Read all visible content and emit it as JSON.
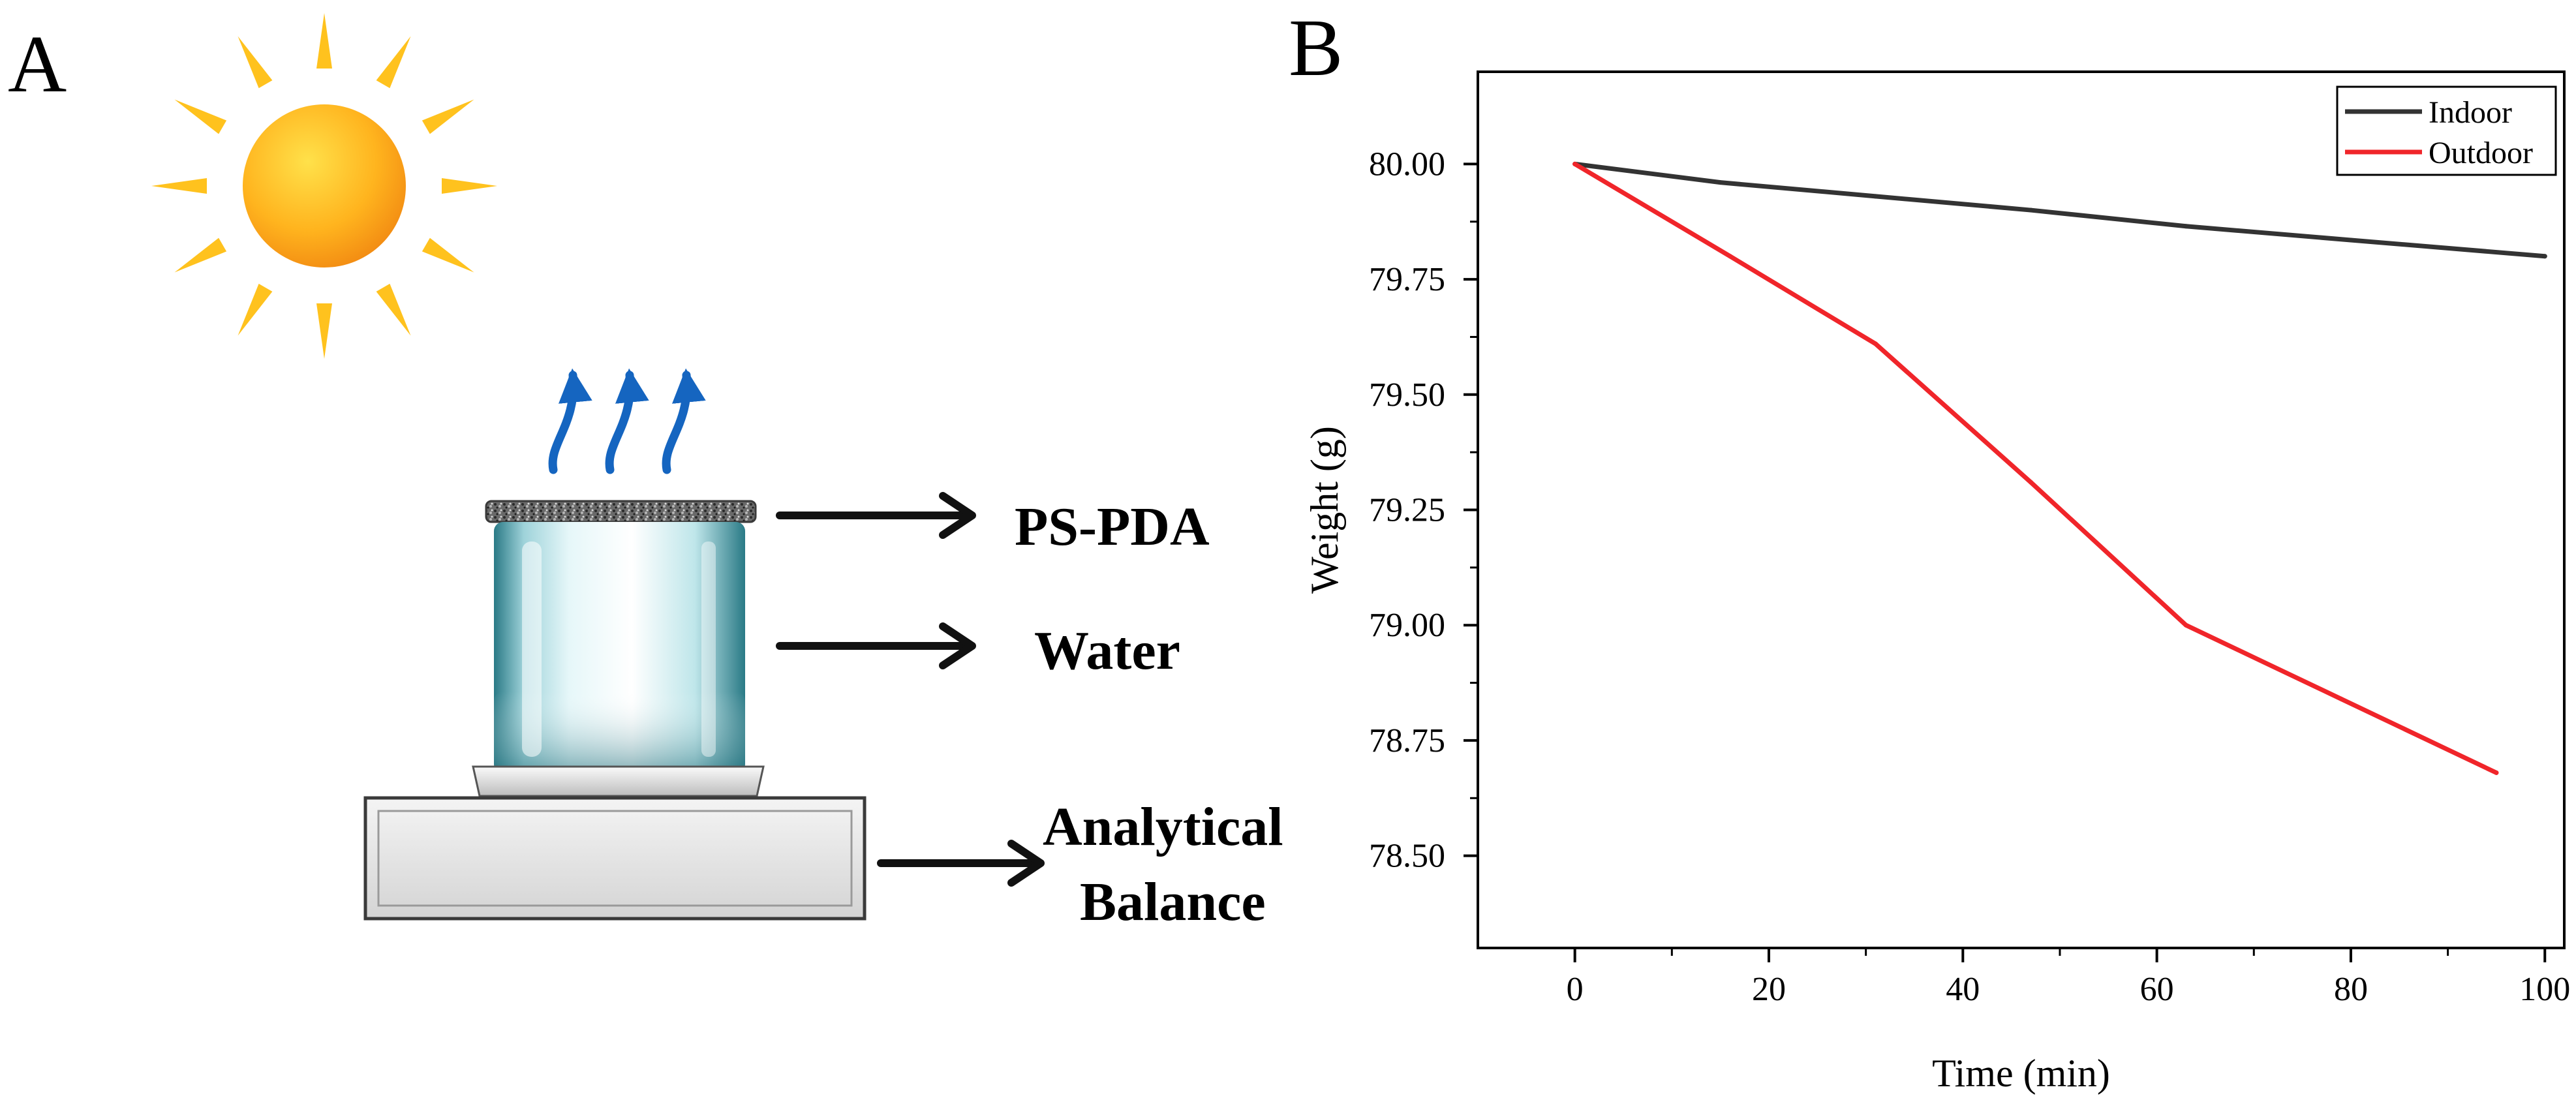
{
  "panel_a": {
    "label": "A",
    "callouts": {
      "ps_pda": "PS-PDA",
      "water": "Water",
      "balance_line1": "Analytical",
      "balance_line2": "Balance"
    }
  },
  "panel_b": {
    "label": "B"
  },
  "chart_data": {
    "type": "line",
    "title": "",
    "xlabel": "Time (min)",
    "ylabel": "Weight (g)",
    "xlim": [
      -10,
      102
    ],
    "ylim": [
      78.3,
      80.2
    ],
    "xticks": [
      0,
      20,
      40,
      60,
      80,
      100
    ],
    "yticks": [
      78.5,
      78.75,
      79.0,
      79.25,
      79.5,
      79.75,
      80.0
    ],
    "xtick_labels": [
      "0",
      "20",
      "40",
      "60",
      "80",
      "100"
    ],
    "ytick_labels": [
      "78.50",
      "78.75",
      "79.00",
      "79.25",
      "79.50",
      "79.75",
      "80.00"
    ],
    "legend_position": "top-right",
    "grid": false,
    "series": [
      {
        "name": "Indoor",
        "color": "#333333",
        "x": [
          0,
          15,
          31,
          47,
          63,
          80,
          100
        ],
        "y": [
          80.0,
          79.96,
          79.93,
          79.9,
          79.865,
          79.835,
          79.8
        ]
      },
      {
        "name": "Outdoor",
        "color": "#f0252a",
        "x": [
          0,
          16,
          31,
          47,
          63,
          79,
          95
        ],
        "y": [
          80.0,
          79.8,
          79.61,
          79.31,
          79.0,
          78.84,
          78.68
        ]
      }
    ]
  }
}
